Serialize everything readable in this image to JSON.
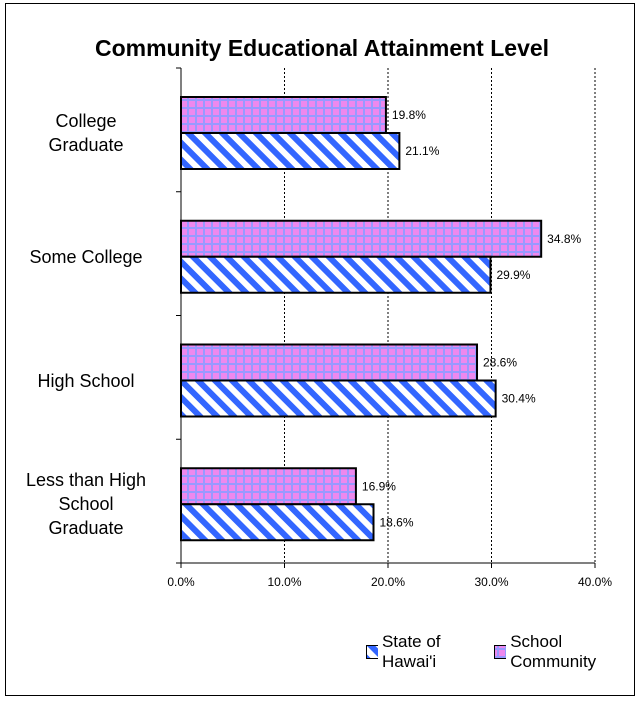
{
  "chart_data": {
    "type": "bar",
    "orientation": "horizontal",
    "title": "Community Educational Attainment Level",
    "categories": [
      "College Graduate",
      "Some College",
      "High School",
      "Less than High School Graduate"
    ],
    "category_lines": [
      [
        "College",
        "Graduate"
      ],
      [
        "Some College"
      ],
      [
        "High School"
      ],
      [
        "Less than High",
        "School",
        "Graduate"
      ]
    ],
    "series": [
      {
        "name": "School Community",
        "values": [
          19.8,
          34.8,
          28.6,
          16.9
        ],
        "labels": [
          "19.8%",
          "34.8%",
          "28.6%",
          "16.9%"
        ]
      },
      {
        "name": "State of Hawai'i",
        "values": [
          21.1,
          29.9,
          30.4,
          18.6
        ],
        "labels": [
          "21.1%",
          "29.9%",
          "30.4%",
          "18.6%"
        ]
      }
    ],
    "xlim": [
      0,
      40
    ],
    "xticks": [
      "0.0%",
      "10.0%",
      "20.0%",
      "30.0%",
      "40.0%"
    ],
    "grid": "vertical dashed",
    "legend_position": "bottom",
    "legend_order": [
      "State of Hawai'i",
      "School Community"
    ],
    "colors": {
      "school_community_fill": "#ee88ee",
      "school_community_pattern": "#9999ff",
      "state_fill": "#ffffff",
      "state_pattern": "#3366ff"
    }
  }
}
